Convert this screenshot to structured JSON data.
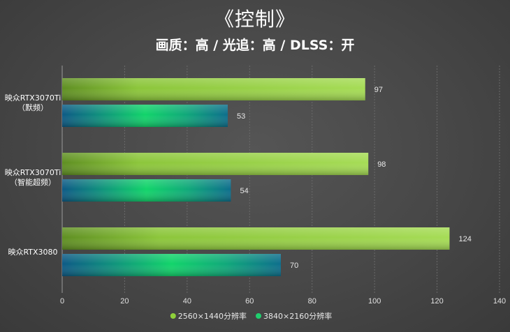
{
  "chart_data": {
    "type": "bar",
    "orientation": "horizontal",
    "title": "《控制》",
    "subtitle": "画质：高 / 光追：高 / DLSS：开",
    "categories": [
      [
        "映众RTX3070Ti",
        "（默频）"
      ],
      [
        "映众RTX3070Ti",
        "（智能超频）"
      ],
      [
        "映众RTX3080"
      ]
    ],
    "series": [
      {
        "name": "2560×1440分辨率",
        "values": [
          97,
          98,
          124
        ],
        "color": "#8fd13a"
      },
      {
        "name": "3840×2160分辨率",
        "values": [
          53,
          54,
          70
        ],
        "color": "#1fcf6e"
      }
    ],
    "xlim": [
      0,
      140
    ],
    "xticks": [
      0,
      20,
      40,
      60,
      80,
      100,
      120,
      140
    ],
    "grid": true,
    "legend_position": "bottom",
    "colors": {
      "series1_dark": "#5a8a1e",
      "series1_light": "#a4dc55",
      "series2_dark": "#0b5d86",
      "series2_light": "#12d46a"
    }
  }
}
